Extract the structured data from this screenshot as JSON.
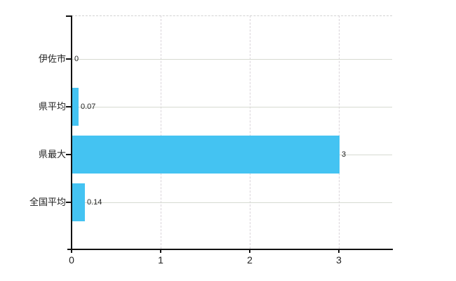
{
  "chart_data": {
    "type": "bar",
    "orientation": "horizontal",
    "title": "",
    "categories": [
      "伊佐市",
      "県平均",
      "県最大",
      "全国平均"
    ],
    "values": [
      0,
      0.07,
      3,
      0.14
    ],
    "value_labels": [
      "0",
      "0.07",
      "3",
      "0.14"
    ],
    "x_ticks": [
      0,
      1,
      2,
      3
    ],
    "x_tick_labels": [
      "0",
      "1",
      "2",
      "3"
    ],
    "xlim": [
      0,
      3.6
    ],
    "grid": true,
    "legend": false,
    "colors": {
      "bar": "#44c3f2",
      "axis": "#111111",
      "grid_horizontal": "#d6dad1",
      "grid_vertical": "#d9d3d9",
      "plot_top_border": "#d2d2d2",
      "text": "#222222",
      "background": "#ffffff"
    }
  }
}
